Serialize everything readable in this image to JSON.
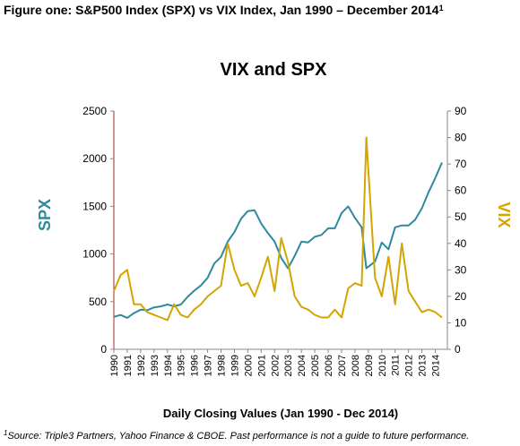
{
  "figure_title": "Figure one: S&P500 Index (SPX) vs VIX Index, Jan 1990 – December 2014",
  "figure_title_marker": "1",
  "footnote_marker": "1",
  "footnote": "Source: Triple3 Partners, Yahoo Finance & CBOE. Past performance is not a guide to future performance.",
  "chart_data": {
    "type": "line",
    "title": "VIX and SPX",
    "x_label": "Daily Closing Values (Jan 1990 - Dec 2014)",
    "y_label": "SPX",
    "y2_label": "VIX",
    "x": [
      1990.0,
      1990.5,
      1991.0,
      1991.5,
      1992.0,
      1992.5,
      1993.0,
      1993.5,
      1994.0,
      1994.5,
      1995.0,
      1995.5,
      1996.0,
      1996.5,
      1997.0,
      1997.5,
      1998.0,
      1998.5,
      1999.0,
      1999.5,
      2000.0,
      2000.5,
      2001.0,
      2001.5,
      2002.0,
      2002.5,
      2003.0,
      2003.5,
      2004.0,
      2004.5,
      2005.0,
      2005.5,
      2006.0,
      2006.5,
      2007.0,
      2007.5,
      2008.0,
      2008.5,
      2008.85,
      2009.5,
      2010.0,
      2010.5,
      2011.0,
      2011.5,
      2012.0,
      2012.5,
      2013.0,
      2013.5,
      2014.0,
      2014.5
    ],
    "xlim": [
      1990,
      2014.9
    ],
    "xticks": [
      1990,
      1991,
      1992,
      1993,
      1994,
      1995,
      1996,
      1997,
      1998,
      1999,
      2000,
      2001,
      2002,
      2003,
      2004,
      2005,
      2006,
      2007,
      2008,
      2009,
      2010,
      2011,
      2012,
      2013,
      2014
    ],
    "ylim": [
      0,
      2500
    ],
    "yticks": [
      0,
      500,
      1000,
      1500,
      2000,
      2500
    ],
    "y2lim": [
      0,
      90
    ],
    "y2ticks": [
      0,
      10,
      20,
      30,
      40,
      50,
      60,
      70,
      80,
      90
    ],
    "series": [
      {
        "name": "SPX",
        "color": "#2e8a9e",
        "values": [
          340,
          360,
          330,
          380,
          415,
          410,
          440,
          450,
          470,
          450,
          470,
          550,
          615,
          670,
          750,
          900,
          970,
          1130,
          1230,
          1370,
          1450,
          1460,
          1320,
          1220,
          1130,
          960,
          850,
          980,
          1130,
          1120,
          1180,
          1200,
          1270,
          1270,
          1430,
          1500,
          1380,
          1280,
          850,
          920,
          1120,
          1050,
          1280,
          1300,
          1300,
          1360,
          1480,
          1650,
          1800,
          1960
        ]
      },
      {
        "name": "VIX",
        "color": "#d4a500",
        "axis": "y2",
        "values": [
          22,
          28,
          30,
          17,
          17,
          14,
          13,
          12,
          11,
          17,
          13,
          12,
          15,
          17,
          20,
          22,
          24,
          40,
          30,
          24,
          25,
          20,
          27,
          35,
          22,
          42,
          33,
          20,
          16,
          15,
          13,
          12,
          12,
          15,
          12,
          23,
          25,
          24,
          80,
          27,
          20,
          35,
          17,
          40,
          22,
          18,
          14,
          15,
          14,
          12
        ]
      }
    ]
  }
}
